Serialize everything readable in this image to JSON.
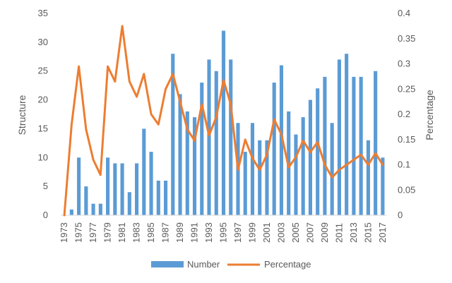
{
  "chart_data": {
    "type": "bar+line",
    "x": [
      1973,
      1974,
      1975,
      1976,
      1977,
      1978,
      1979,
      1980,
      1981,
      1982,
      1983,
      1984,
      1985,
      1986,
      1987,
      1988,
      1989,
      1990,
      1991,
      1992,
      1993,
      1994,
      1995,
      1996,
      1997,
      1998,
      1999,
      2000,
      2001,
      2002,
      2003,
      2004,
      2005,
      2006,
      2007,
      2008,
      2009,
      2010,
      2011,
      2012,
      2013,
      2014,
      2015,
      2016,
      2017
    ],
    "x_tick_labels": [
      "1973",
      "1975",
      "1977",
      "1979",
      "1981",
      "1983",
      "1985",
      "1987",
      "1989",
      "1991",
      "1993",
      "1995",
      "1997",
      "1999",
      "2001",
      "2003",
      "2005",
      "2007",
      "2009",
      "2011",
      "2013",
      "2015",
      "2017"
    ],
    "series": [
      {
        "name": "Number",
        "type": "bar",
        "axis": "left",
        "color": "#5B9BD5",
        "values": [
          0,
          1,
          10,
          5,
          2,
          2,
          10,
          9,
          9,
          4,
          9,
          15,
          11,
          6,
          6,
          28,
          21,
          18,
          17,
          23,
          27,
          25,
          32,
          27,
          16,
          11,
          16,
          13,
          13,
          23,
          26,
          18,
          14,
          17,
          20,
          22,
          24,
          16,
          27,
          28,
          24,
          24,
          13,
          25,
          10
        ]
      },
      {
        "name": "Percentage",
        "type": "line",
        "axis": "right",
        "color": "#ED7D31",
        "values": [
          0,
          0.18,
          0.295,
          0.17,
          0.11,
          0.08,
          0.295,
          0.265,
          0.375,
          0.265,
          0.235,
          0.28,
          0.2,
          0.18,
          0.25,
          0.28,
          0.225,
          0.17,
          0.148,
          0.22,
          0.158,
          0.195,
          0.268,
          0.22,
          0.09,
          0.15,
          0.113,
          0.09,
          0.12,
          0.19,
          0.16,
          0.095,
          0.115,
          0.148,
          0.125,
          0.145,
          0.1,
          0.075,
          0.09,
          0.1,
          0.11,
          0.12,
          0.1,
          0.123,
          0.1
        ]
      }
    ],
    "ylabel": "Structure",
    "ylim": [
      0,
      35
    ],
    "yticks": [
      "0",
      "5",
      "10",
      "15",
      "20",
      "25",
      "30",
      "35"
    ],
    "y2label": "Percentage",
    "y2lim": [
      0,
      0.4
    ],
    "y2ticks": [
      "0",
      "0.05",
      "0.1",
      "0.15",
      "0.2",
      "0.25",
      "0.3",
      "0.35",
      "0.4"
    ],
    "grid": false,
    "legend_position": "bottom"
  }
}
